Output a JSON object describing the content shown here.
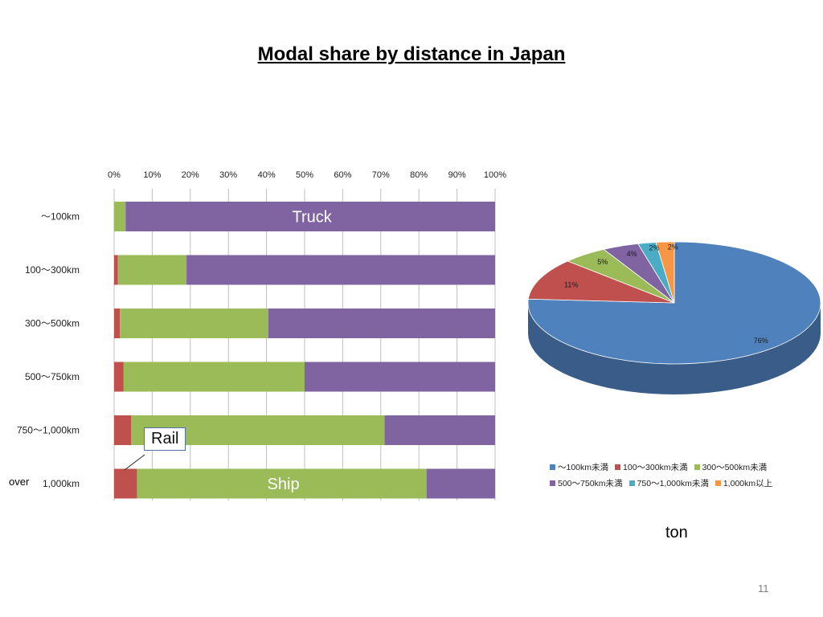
{
  "slide": {
    "title": "Modal share by distance in Japan",
    "page_number": "11",
    "ton_label": "ton",
    "over_label": "over",
    "rail_callout": "Rail"
  },
  "colors": {
    "rail": "#c0504d",
    "ship": "#9bbb59",
    "truck": "#8064a2",
    "pie": [
      "#4f81bd",
      "#c0504d",
      "#9bbb59",
      "#8064a2",
      "#4bacc6",
      "#f79646"
    ]
  },
  "chart_data": [
    {
      "type": "bar",
      "orientation": "horizontal",
      "stacked": "percent",
      "categories": [
        "〜100km",
        "100〜300km",
        "300〜500km",
        "500〜750km",
        "750〜1,000km",
        "1,000km"
      ],
      "x_ticks": [
        "0%",
        "10%",
        "20%",
        "30%",
        "40%",
        "50%",
        "60%",
        "70%",
        "80%",
        "90%",
        "100%"
      ],
      "xlim": [
        0,
        100
      ],
      "grid": true,
      "series": [
        {
          "name": "Rail",
          "values": [
            0,
            1,
            1.5,
            2.5,
            4.5,
            6
          ]
        },
        {
          "name": "Ship",
          "values": [
            3,
            18,
            39,
            47.5,
            66.5,
            76
          ]
        },
        {
          "name": "Truck",
          "values": [
            97,
            81,
            59.5,
            50,
            29,
            18
          ]
        }
      ],
      "annotations": [
        {
          "text": "Truck",
          "category": "〜100km",
          "series": "Truck"
        },
        {
          "text": "Ship",
          "category": "1,000km",
          "series": "Ship"
        }
      ]
    },
    {
      "type": "pie",
      "labels": [
        "〜100km未満",
        "100〜300km未満",
        "300〜500km未満",
        "500〜750km未満",
        "750〜1,000km未満",
        "1,000km以上"
      ],
      "values": [
        76,
        11,
        5,
        4,
        2,
        2
      ],
      "data_labels": [
        "76%",
        "11%",
        "5%",
        "4%",
        "2%",
        "2%"
      ],
      "legend": "bottom"
    }
  ]
}
